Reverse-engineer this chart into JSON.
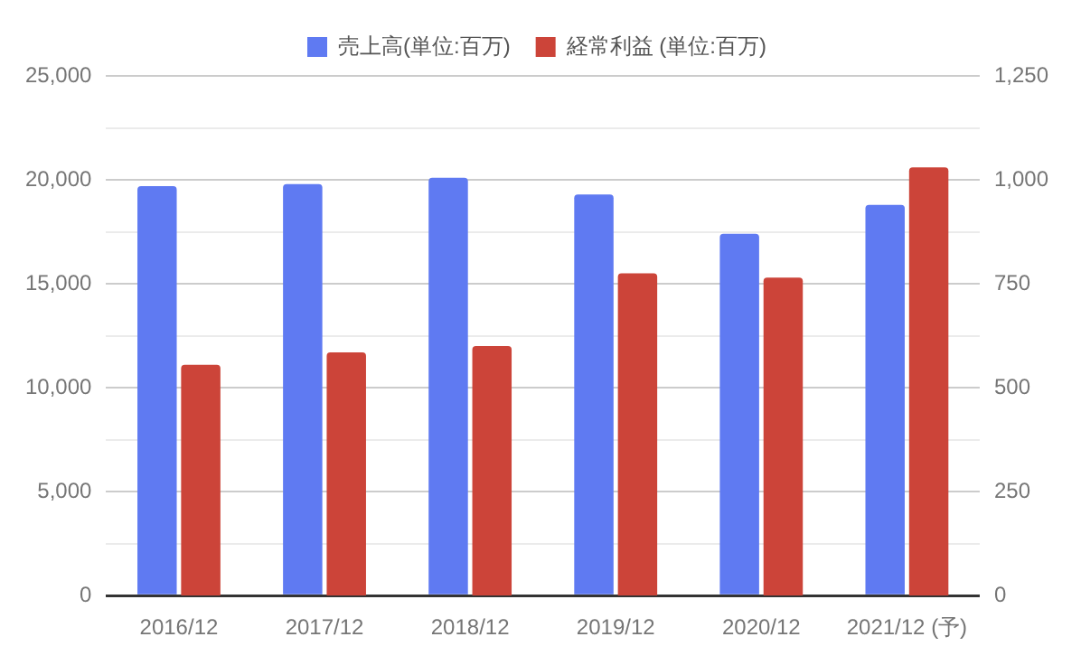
{
  "chart_data": {
    "type": "bar",
    "categories": [
      "2016/12",
      "2017/12",
      "2018/12",
      "2019/12",
      "2020/12",
      "2021/12 (予)"
    ],
    "series": [
      {
        "name": "売上高(単位:百万)",
        "color": "#5f7af2",
        "values": [
          19700,
          19800,
          20100,
          19300,
          17400,
          18800
        ]
      },
      {
        "name": "経常利益 (単位:百万)",
        "color": "#cc4439",
        "axis": "y2",
        "values": [
          555,
          585,
          600,
          775,
          765,
          1030
        ]
      }
    ],
    "ylim": [
      0,
      25000
    ],
    "yticks": [
      0,
      {
        "value": 2500,
        "label": null
      },
      {
        "value": 5000,
        "label": "5,000"
      },
      {
        "value": 7500,
        "label": null
      },
      {
        "value": 10000,
        "label": "10,000"
      },
      {
        "value": 12500,
        "label": null
      },
      {
        "value": 15000,
        "label": "15,000"
      },
      {
        "value": 17500,
        "label": null
      },
      {
        "value": 20000,
        "label": "20,000"
      },
      {
        "value": 22500,
        "label": null
      },
      {
        "value": 25000,
        "label": "25,000"
      }
    ],
    "y2lim": [
      0,
      1250
    ],
    "y2ticks": [
      0,
      250,
      500,
      750,
      {
        "value": 1000,
        "label": "1,000"
      },
      {
        "value": 1250,
        "label": "1,250"
      }
    ],
    "grid": "y",
    "legend": "top"
  }
}
